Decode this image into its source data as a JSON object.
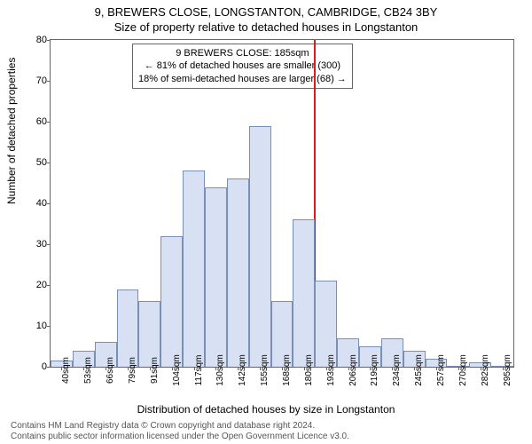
{
  "titles": {
    "main": "9, BREWERS CLOSE, LONGSTANTON, CAMBRIDGE, CB24 3BY",
    "sub": "Size of property relative to detached houses in Longstanton"
  },
  "axes": {
    "ylabel": "Number of detached properties",
    "xlabel": "Distribution of detached houses by size in Longstanton",
    "ymin": 0,
    "ymax": 80,
    "ytick_step": 10,
    "xticks": [
      "40sqm",
      "53sqm",
      "66sqm",
      "79sqm",
      "91sqm",
      "104sqm",
      "117sqm",
      "130sqm",
      "142sqm",
      "155sqm",
      "168sqm",
      "180sqm",
      "193sqm",
      "206sqm",
      "219sqm",
      "234sqm",
      "245sqm",
      "257sqm",
      "270sqm",
      "282sqm",
      "295sqm"
    ]
  },
  "chart": {
    "type": "histogram",
    "bar_fill": "#d8e1f3",
    "bar_stroke": "#7a8fb5",
    "bar_count": 21,
    "values": [
      1.5,
      4,
      6,
      19,
      16,
      32,
      48,
      44,
      46,
      59,
      16,
      36,
      21,
      7,
      5,
      7,
      4,
      2,
      0,
      1,
      0
    ],
    "background": "#ffffff",
    "border_color": "#666666"
  },
  "marker": {
    "position_sqm": 185,
    "min_sqm": 40,
    "max_sqm": 295,
    "color": "#d02020"
  },
  "annotation": {
    "lines": [
      "9 BREWERS CLOSE: 185sqm",
      "← 81% of detached houses are smaller (300)",
      "18% of semi-detached houses are larger (68) →"
    ]
  },
  "footer": {
    "line1": "Contains HM Land Registry data © Crown copyright and database right 2024.",
    "line2": "Contains public sector information licensed under the Open Government Licence v3.0."
  },
  "style": {
    "tick_fontsize": 11,
    "label_fontsize": 12,
    "title_fontsize": 13,
    "annotation_fontsize": 11
  }
}
